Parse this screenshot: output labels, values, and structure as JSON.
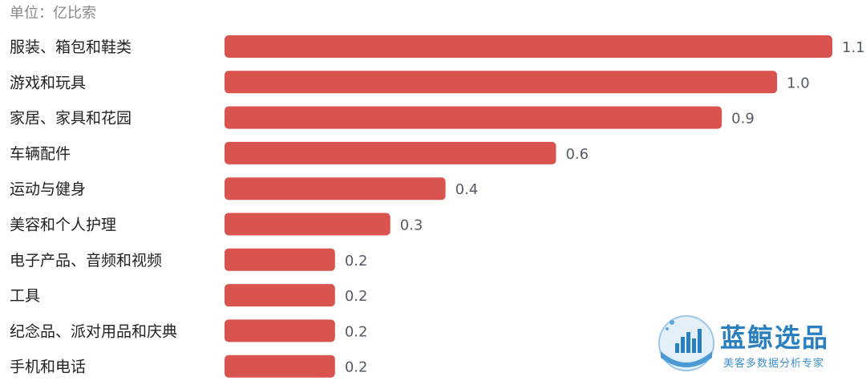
{
  "unit_label": "单位：亿比索",
  "colors": {
    "bar": "#d9534f",
    "watermark": "#2a7fc1"
  },
  "watermark": {
    "brand": "蓝鲸选品",
    "tagline": "美客多数据分析专家",
    "logo_icon": "whale-bar-chart-icon"
  },
  "chart_data": {
    "type": "bar",
    "orientation": "horizontal",
    "categories": [
      "服装、箱包和鞋类",
      "游戏和玩具",
      "家居、家具和花园",
      "车辆配件",
      "运动与健身",
      "美容和个人护理",
      "电子产品、音频和视频",
      "工具",
      "纪念品、派对用品和庆典",
      "手机和电话"
    ],
    "values": [
      1.1,
      1.0,
      0.9,
      0.6,
      0.4,
      0.3,
      0.2,
      0.2,
      0.2,
      0.2
    ],
    "value_labels": [
      "1.1",
      "1.0",
      "0.9",
      "0.6",
      "0.4",
      "0.3",
      "0.2",
      "0.2",
      "0.2",
      "0.2"
    ],
    "xlim": [
      0,
      1.1
    ],
    "grid": false,
    "legend": "none"
  }
}
